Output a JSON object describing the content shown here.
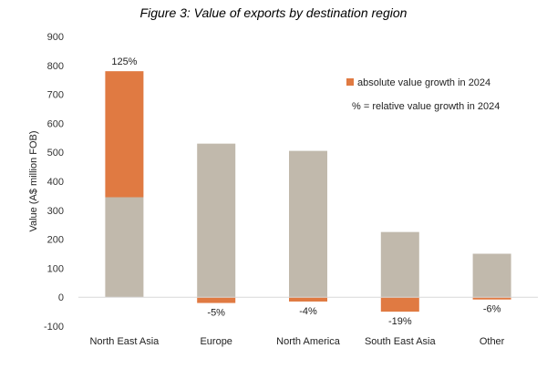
{
  "chart_data": {
    "type": "bar",
    "title": "Figure 3: Value of exports by destination region",
    "ylabel": "Value (A$ million FOB)",
    "xlabel": "",
    "ylim": [
      -100,
      900
    ],
    "yticks": [
      -100,
      0,
      100,
      200,
      300,
      400,
      500,
      600,
      700,
      800,
      900
    ],
    "grid": false,
    "stacked": true,
    "categories": [
      "North East Asia",
      "Europe",
      "North America",
      "South East Asia",
      "Other"
    ],
    "series": [
      {
        "name": "",
        "values": [
          345,
          530,
          505,
          225,
          150
        ],
        "color": "#c1b9ac"
      },
      {
        "name": "absolute value growth in 2024",
        "values": [
          435,
          -20,
          -15,
          -50,
          -8
        ],
        "color": "#e07a42"
      }
    ],
    "data_labels": [
      "125%",
      "-5%",
      "-4%",
      "-19%",
      "-6%"
    ],
    "legend": {
      "placement": "top-right",
      "items": [
        "absolute value growth in 2024",
        "% = relative value growth in 2024"
      ]
    }
  }
}
